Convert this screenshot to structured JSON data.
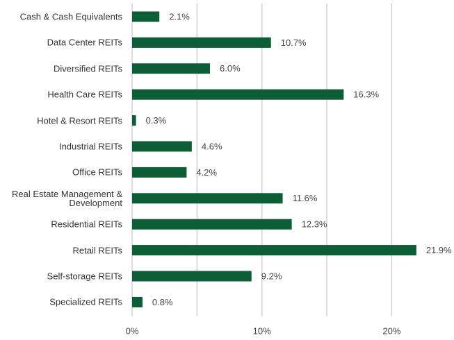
{
  "chart_data": {
    "type": "bar",
    "orientation": "horizontal",
    "categories": [
      "Cash & Cash Equivalents",
      "Data Center REITs",
      "Diversified REITs",
      "Health Care REITs",
      "Hotel & Resort REITs",
      "Industrial REITs",
      "Office REITs",
      "Real Estate Management & Development",
      "Residential REITs",
      "Retail REITs",
      "Self-storage REITs",
      "Specialized REITs"
    ],
    "values": [
      2.1,
      10.7,
      6.0,
      16.3,
      0.3,
      4.6,
      4.2,
      11.6,
      12.3,
      21.9,
      9.2,
      0.8
    ],
    "value_labels": [
      "2.1%",
      "10.7%",
      "6.0%",
      "16.3%",
      "0.3%",
      "4.6%",
      "4.2%",
      "11.6%",
      "12.3%",
      "21.9%",
      "9.2%",
      "0.8%"
    ],
    "color": "#0b5e35",
    "xlim": [
      0,
      24.8
    ],
    "xticks": [
      {
        "value": 0,
        "label": "0%"
      },
      {
        "value": 10,
        "label": "10%"
      },
      {
        "value": 20,
        "label": "20%"
      }
    ],
    "minor_xticks": [
      5,
      15
    ],
    "grid": true
  }
}
